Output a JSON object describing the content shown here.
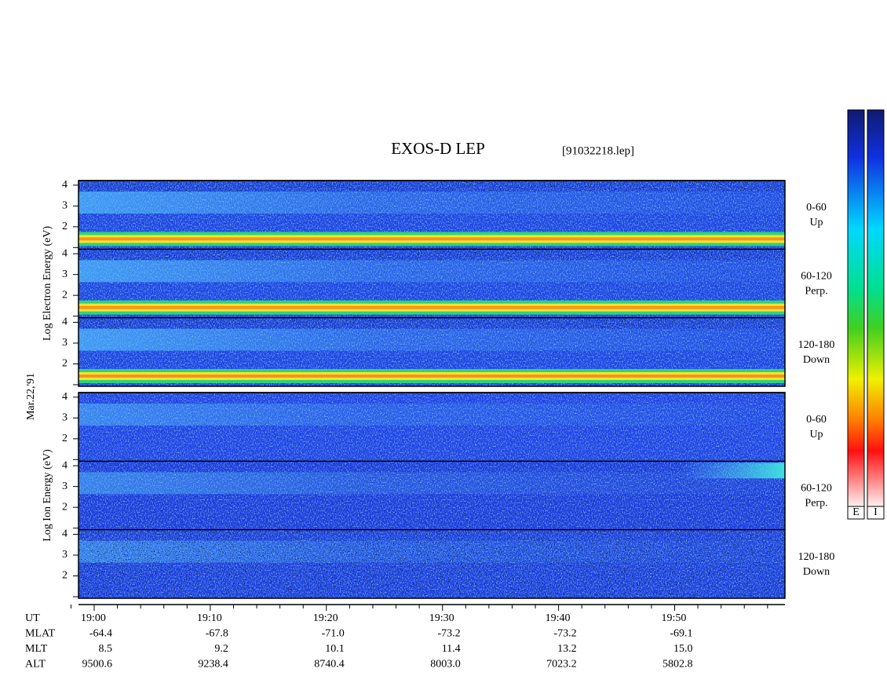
{
  "header": {
    "title": "EXOS-D LEP",
    "file": "[91032218.lep]"
  },
  "date": "Mar.22,'91",
  "yticks": [
    "2",
    "3",
    "4"
  ],
  "panels": [
    {
      "label": "Log  Electron  Energy (eV)",
      "subpanels": [
        {
          "angle": "0-60",
          "direction": "Up"
        },
        {
          "angle": "60-120",
          "direction": "Perp."
        },
        {
          "angle": "120-180",
          "direction": "Down"
        }
      ]
    },
    {
      "label": "Log  Ion  Energy (eV)",
      "subpanels": [
        {
          "angle": "0-60",
          "direction": "Up"
        },
        {
          "angle": "60-120",
          "direction": "Perp."
        },
        {
          "angle": "120-180",
          "direction": "Down"
        }
      ]
    }
  ],
  "footer": {
    "rows": [
      {
        "name": "UT",
        "values": [
          "19:00",
          "19:10",
          "19:20",
          "19:30",
          "19:40",
          "19:50"
        ]
      },
      {
        "name": "MLAT",
        "values": [
          "-64.4",
          "-67.8",
          "-71.0",
          "-73.2",
          "-73.2",
          "-69.1"
        ]
      },
      {
        "name": "MLT",
        "values": [
          "8.5",
          "9.2",
          "10.1",
          "11.4",
          "13.2",
          "15.0"
        ]
      },
      {
        "name": "ALT",
        "values": [
          "9500.6",
          "9238.4",
          "8740.4",
          "8003.0",
          "7023.2",
          "5802.8"
        ]
      }
    ]
  },
  "colorbars": [
    "E",
    "I"
  ]
}
